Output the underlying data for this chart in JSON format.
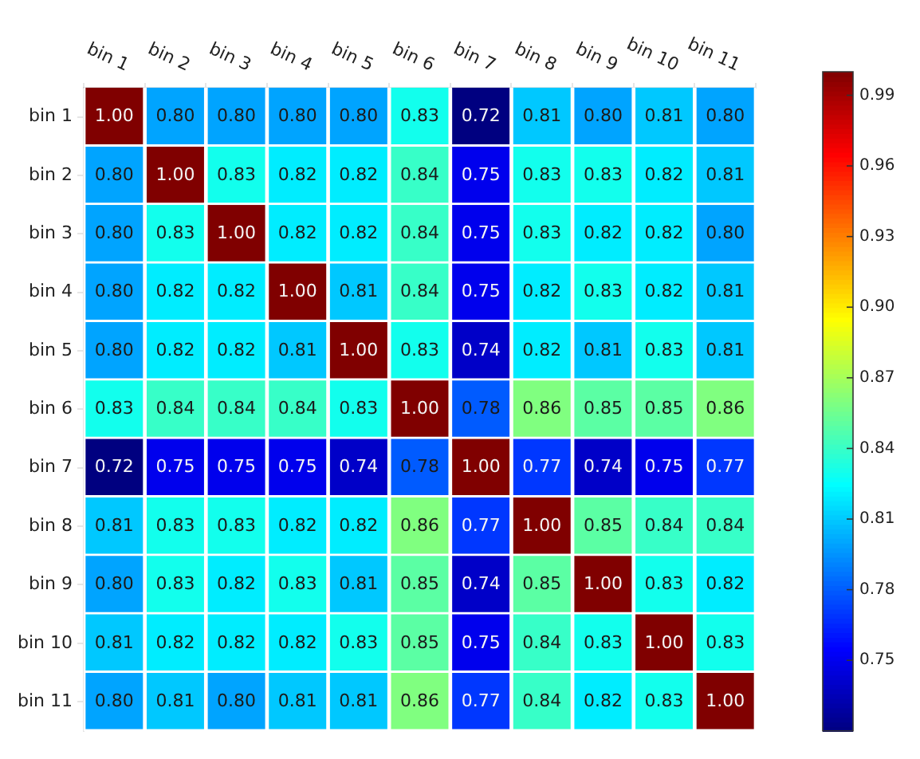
{
  "chart_data": {
    "type": "heatmap",
    "categories": [
      "bin 1",
      "bin 2",
      "bin 3",
      "bin 4",
      "bin 5",
      "bin 6",
      "bin 7",
      "bin 8",
      "bin 9",
      "bin 10",
      "bin 11"
    ],
    "y_categories": [
      "bin 1",
      "bin 2",
      "bin 3",
      "bin 4",
      "bin 5",
      "bin 6",
      "bin 7",
      "bin 8",
      "bin 9",
      "bin 10",
      "bin 11"
    ],
    "cells": [
      [
        1.0,
        0.8,
        0.8,
        0.8,
        0.8,
        0.83,
        0.72,
        0.81,
        0.8,
        0.81,
        0.8
      ],
      [
        0.8,
        1.0,
        0.83,
        0.82,
        0.82,
        0.84,
        0.75,
        0.83,
        0.83,
        0.82,
        0.81
      ],
      [
        0.8,
        0.83,
        1.0,
        0.82,
        0.82,
        0.84,
        0.75,
        0.83,
        0.82,
        0.82,
        0.8
      ],
      [
        0.8,
        0.82,
        0.82,
        1.0,
        0.81,
        0.84,
        0.75,
        0.82,
        0.83,
        0.82,
        0.81
      ],
      [
        0.8,
        0.82,
        0.82,
        0.81,
        1.0,
        0.83,
        0.74,
        0.82,
        0.81,
        0.83,
        0.81
      ],
      [
        0.83,
        0.84,
        0.84,
        0.84,
        0.83,
        1.0,
        0.78,
        0.86,
        0.85,
        0.85,
        0.86
      ],
      [
        0.72,
        0.75,
        0.75,
        0.75,
        0.74,
        0.78,
        1.0,
        0.77,
        0.74,
        0.75,
        0.77
      ],
      [
        0.81,
        0.83,
        0.83,
        0.82,
        0.82,
        0.86,
        0.77,
        1.0,
        0.85,
        0.84,
        0.84
      ],
      [
        0.8,
        0.83,
        0.82,
        0.83,
        0.81,
        0.85,
        0.74,
        0.85,
        1.0,
        0.83,
        0.82
      ],
      [
        0.81,
        0.82,
        0.82,
        0.82,
        0.83,
        0.85,
        0.75,
        0.84,
        0.83,
        1.0,
        0.83
      ],
      [
        0.8,
        0.81,
        0.8,
        0.81,
        0.81,
        0.86,
        0.77,
        0.84,
        0.82,
        0.83,
        1.0
      ]
    ],
    "cell_labels": [
      [
        "1.00",
        "0.80",
        "0.80",
        "0.80",
        "0.80",
        "0.83",
        "0.72",
        "0.81",
        "0.80",
        "0.81",
        "0.80"
      ],
      [
        "0.80",
        "1.00",
        "0.83",
        "0.82",
        "0.82",
        "0.84",
        "0.75",
        "0.83",
        "0.83",
        "0.82",
        "0.81"
      ],
      [
        "0.80",
        "0.83",
        "1.00",
        "0.82",
        "0.82",
        "0.84",
        "0.75",
        "0.83",
        "0.82",
        "0.82",
        "0.80"
      ],
      [
        "0.80",
        "0.82",
        "0.82",
        "1.00",
        "0.81",
        "0.84",
        "0.75",
        "0.82",
        "0.83",
        "0.82",
        "0.81"
      ],
      [
        "0.80",
        "0.82",
        "0.82",
        "0.81",
        "1.00",
        "0.83",
        "0.74",
        "0.82",
        "0.81",
        "0.83",
        "0.81"
      ],
      [
        "0.83",
        "0.84",
        "0.84",
        "0.84",
        "0.83",
        "1.00",
        "0.78",
        "0.86",
        "0.85",
        "0.85",
        "0.86"
      ],
      [
        "0.72",
        "0.75",
        "0.75",
        "0.75",
        "0.74",
        "0.78",
        "1.00",
        "0.77",
        "0.74",
        "0.75",
        "0.77"
      ],
      [
        "0.81",
        "0.83",
        "0.83",
        "0.82",
        "0.82",
        "0.86",
        "0.77",
        "1.00",
        "0.85",
        "0.84",
        "0.84"
      ],
      [
        "0.80",
        "0.83",
        "0.82",
        "0.83",
        "0.81",
        "0.85",
        "0.74",
        "0.85",
        "1.00",
        "0.83",
        "0.82"
      ],
      [
        "0.81",
        "0.82",
        "0.82",
        "0.82",
        "0.83",
        "0.85",
        "0.75",
        "0.84",
        "0.83",
        "1.00",
        "0.83"
      ],
      [
        "0.80",
        "0.81",
        "0.80",
        "0.81",
        "0.81",
        "0.86",
        "0.77",
        "0.84",
        "0.82",
        "0.83",
        "1.00"
      ]
    ],
    "clim": [
      0.72,
      1.0
    ],
    "cticks": [
      0.75,
      0.78,
      0.81,
      0.84,
      0.87,
      {
        "value": 0.9,
        "label": "0.90"
      },
      0.93,
      0.96,
      0.99
    ]
  }
}
